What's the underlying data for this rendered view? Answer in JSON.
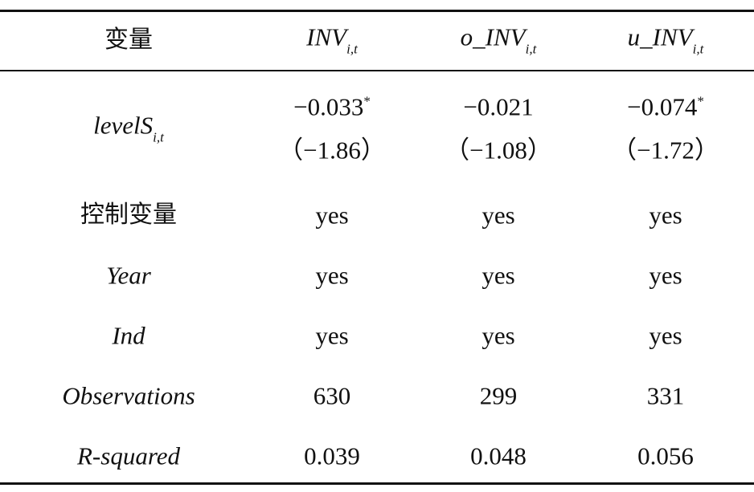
{
  "table": {
    "header": [
      {
        "text": "变量"
      },
      {
        "text": "INV",
        "sub": "i,t"
      },
      {
        "text": "o_INV",
        "sub": "i,t"
      },
      {
        "text": "u_INV",
        "sub": "i,t"
      }
    ],
    "rows": [
      [
        {
          "text": "levelS",
          "sub": "i,t"
        },
        {
          "coef": "−0.033",
          "star": "*",
          "t": "（−1.86）"
        },
        {
          "coef": "−0.021",
          "t": "（−1.08）"
        },
        {
          "coef": "−0.074",
          "star": "*",
          "t": "（−1.72）"
        }
      ],
      [
        "控制变量",
        "yes",
        "yes",
        "yes"
      ],
      [
        "Year",
        "yes",
        "yes",
        "yes"
      ],
      [
        "Ind",
        "yes",
        "yes",
        "yes"
      ],
      [
        "Observations",
        "630",
        "299",
        "331"
      ],
      [
        "R-squared",
        "0.039",
        "0.048",
        "0.056"
      ]
    ]
  }
}
